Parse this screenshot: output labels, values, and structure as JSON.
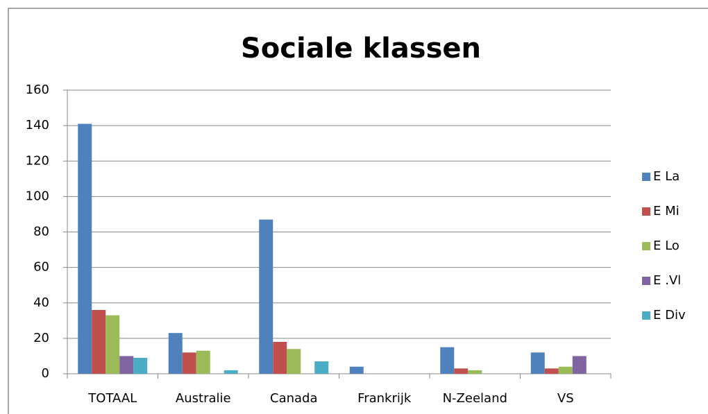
{
  "chart_data": {
    "type": "bar",
    "title": "Sociale klassen",
    "categories": [
      "TOTAAL",
      "Australie",
      "Canada",
      "Frankrijk",
      "N-Zeeland",
      "VS"
    ],
    "series": [
      {
        "name": "E La",
        "color": "#4f81bd",
        "values": [
          141,
          23,
          87,
          4,
          15,
          12
        ]
      },
      {
        "name": "E Mi",
        "color": "#c0504d",
        "values": [
          36,
          12,
          18,
          0,
          3,
          3
        ]
      },
      {
        "name": "E Lo",
        "color": "#9bbb59",
        "values": [
          33,
          13,
          14,
          0,
          2,
          4
        ]
      },
      {
        "name": "E .Vl",
        "color": "#8064a2",
        "values": [
          10,
          0,
          0,
          0,
          0,
          10
        ]
      },
      {
        "name": "E Div",
        "color": "#4bacc6",
        "values": [
          9,
          2,
          7,
          0,
          0,
          0
        ]
      }
    ],
    "ylim": [
      0,
      160
    ],
    "yticks": [
      0,
      20,
      40,
      60,
      80,
      100,
      120,
      140,
      160
    ],
    "grid": true,
    "legend": "right"
  }
}
